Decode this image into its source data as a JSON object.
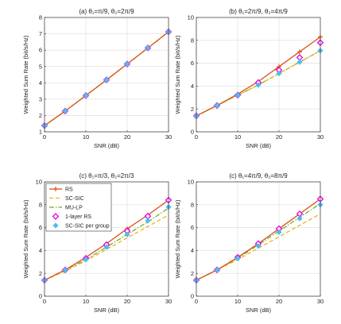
{
  "chart_data": [
    {
      "type": "line",
      "title": "(a) θ₁=π/9, θ₂=2π/9",
      "xlabel": "SNR (dB)",
      "ylabel": "Weighted Sum Rate (bit/s/Hz)",
      "xlim": [
        0,
        30
      ],
      "ylim": [
        1,
        8
      ],
      "xticks": [
        0,
        10,
        20,
        30
      ],
      "yticks": [
        1,
        2,
        3,
        4,
        5,
        6,
        7,
        8
      ],
      "grid": true,
      "x": [
        0,
        5,
        10,
        15,
        20,
        25,
        30
      ],
      "series": [
        {
          "name": "RS",
          "values": [
            1.38,
            2.27,
            3.22,
            4.18,
            5.15,
            6.13,
            7.12
          ]
        },
        {
          "name": "SC-SIC",
          "values": [
            1.38,
            2.27,
            3.22,
            4.18,
            5.15,
            6.13,
            7.12
          ]
        },
        {
          "name": "MU-LP",
          "values": [
            1.38,
            2.27,
            3.22,
            4.18,
            5.15,
            6.13,
            7.12
          ]
        },
        {
          "name": "1-layer RS",
          "values": [
            1.38,
            2.27,
            3.22,
            4.18,
            5.15,
            6.13,
            7.12
          ]
        },
        {
          "name": "SC-SIC per group",
          "values": [
            1.38,
            2.27,
            3.22,
            4.18,
            5.15,
            6.13,
            7.12
          ]
        }
      ]
    },
    {
      "type": "line",
      "title": "(b) θ₁=2π/9, θ₂=4π/9",
      "xlabel": "SNR (dB)",
      "ylabel": "Weighted Sum Rate (bit/s/Hz)",
      "xlim": [
        0,
        30
      ],
      "ylim": [
        0,
        10
      ],
      "xticks": [
        0,
        10,
        20,
        30
      ],
      "yticks": [
        0,
        2,
        4,
        6,
        8,
        10
      ],
      "grid": true,
      "x": [
        0,
        5,
        10,
        15,
        20,
        25,
        30
      ],
      "series": [
        {
          "name": "RS",
          "values": [
            1.4,
            2.3,
            3.3,
            4.4,
            5.7,
            7.0,
            8.3
          ]
        },
        {
          "name": "SC-SIC",
          "values": [
            1.4,
            2.3,
            3.2,
            4.1,
            5.1,
            6.1,
            7.1
          ]
        },
        {
          "name": "MU-LP",
          "values": [
            1.4,
            2.3,
            3.2,
            4.1,
            5.1,
            6.1,
            7.1
          ]
        },
        {
          "name": "1-layer RS",
          "values": [
            1.4,
            2.3,
            3.2,
            4.3,
            5.4,
            6.5,
            7.8
          ]
        },
        {
          "name": "SC-SIC per group",
          "values": [
            1.4,
            2.3,
            3.2,
            4.1,
            5.1,
            6.1,
            7.1
          ]
        }
      ]
    },
    {
      "type": "line",
      "title": "(c) θ₁=π/3, θ₂=2π/3",
      "xlabel": "SNR (dB)",
      "ylabel": "Weighted Sum Rate (bit/s/Hz)",
      "xlim": [
        0,
        30
      ],
      "ylim": [
        0,
        10
      ],
      "xticks": [
        0,
        10,
        20,
        30
      ],
      "yticks": [
        0,
        2,
        4,
        6,
        8,
        10
      ],
      "grid": true,
      "legend_position": "top-left",
      "x": [
        0,
        5,
        10,
        15,
        20,
        25,
        30
      ],
      "series": [
        {
          "name": "RS",
          "values": [
            1.4,
            2.3,
            3.4,
            4.6,
            5.9,
            7.1,
            8.4
          ]
        },
        {
          "name": "SC-SIC",
          "values": [
            1.4,
            2.2,
            3.1,
            4.1,
            5.1,
            6.1,
            7.1
          ]
        },
        {
          "name": "MU-LP",
          "values": [
            1.4,
            2.3,
            3.2,
            4.3,
            5.4,
            6.5,
            7.7
          ]
        },
        {
          "name": "1-layer RS",
          "values": [
            1.4,
            2.3,
            3.3,
            4.5,
            5.7,
            7.0,
            8.4
          ]
        },
        {
          "name": "SC-SIC per group",
          "values": [
            1.4,
            2.3,
            3.2,
            4.3,
            5.4,
            6.6,
            7.8
          ]
        }
      ]
    },
    {
      "type": "line",
      "title": "(c) θ₁=4π/9, θ₂=8π/9",
      "xlabel": "SNR (dB)",
      "ylabel": "Weighted Sum Rate (bit/s/Hz)",
      "xlim": [
        0,
        30
      ],
      "ylim": [
        0,
        10
      ],
      "xticks": [
        0,
        10,
        20,
        30
      ],
      "yticks": [
        0,
        2,
        4,
        6,
        8,
        10
      ],
      "grid": true,
      "x": [
        0,
        5,
        10,
        15,
        20,
        25,
        30
      ],
      "series": [
        {
          "name": "RS",
          "values": [
            1.4,
            2.3,
            3.4,
            4.6,
            5.9,
            7.2,
            8.5
          ]
        },
        {
          "name": "SC-SIC",
          "values": [
            1.4,
            2.3,
            3.2,
            4.2,
            5.2,
            6.2,
            7.2
          ]
        },
        {
          "name": "MU-LP",
          "values": [
            1.4,
            2.3,
            3.3,
            4.5,
            5.7,
            6.9,
            8.1
          ]
        },
        {
          "name": "1-layer RS",
          "values": [
            1.4,
            2.3,
            3.4,
            4.6,
            5.9,
            7.2,
            8.5
          ]
        },
        {
          "name": "SC-SIC per group",
          "values": [
            1.4,
            2.3,
            3.3,
            4.4,
            5.6,
            6.8,
            8.0
          ]
        }
      ]
    }
  ],
  "legend": {
    "entries": [
      "RS",
      "SC-SIC",
      "MU-LP",
      "1-layer RS",
      "SC-SIC per group"
    ]
  },
  "series_styles": {
    "RS": {
      "color": "#d95319",
      "dash": "",
      "marker": "plus"
    },
    "SC-SIC": {
      "color": "#edb120",
      "dash": "5,3",
      "marker": "none"
    },
    "MU-LP": {
      "color": "#77ac30",
      "dash": "6,2,1.5,2",
      "marker": "none"
    },
    "1-layer RS": {
      "color": "#e600e6",
      "dash": "none",
      "marker": "diamond-open"
    },
    "SC-SIC per group": {
      "color": "#4dbeee",
      "dash": "none",
      "marker": "diamond-filled"
    }
  }
}
